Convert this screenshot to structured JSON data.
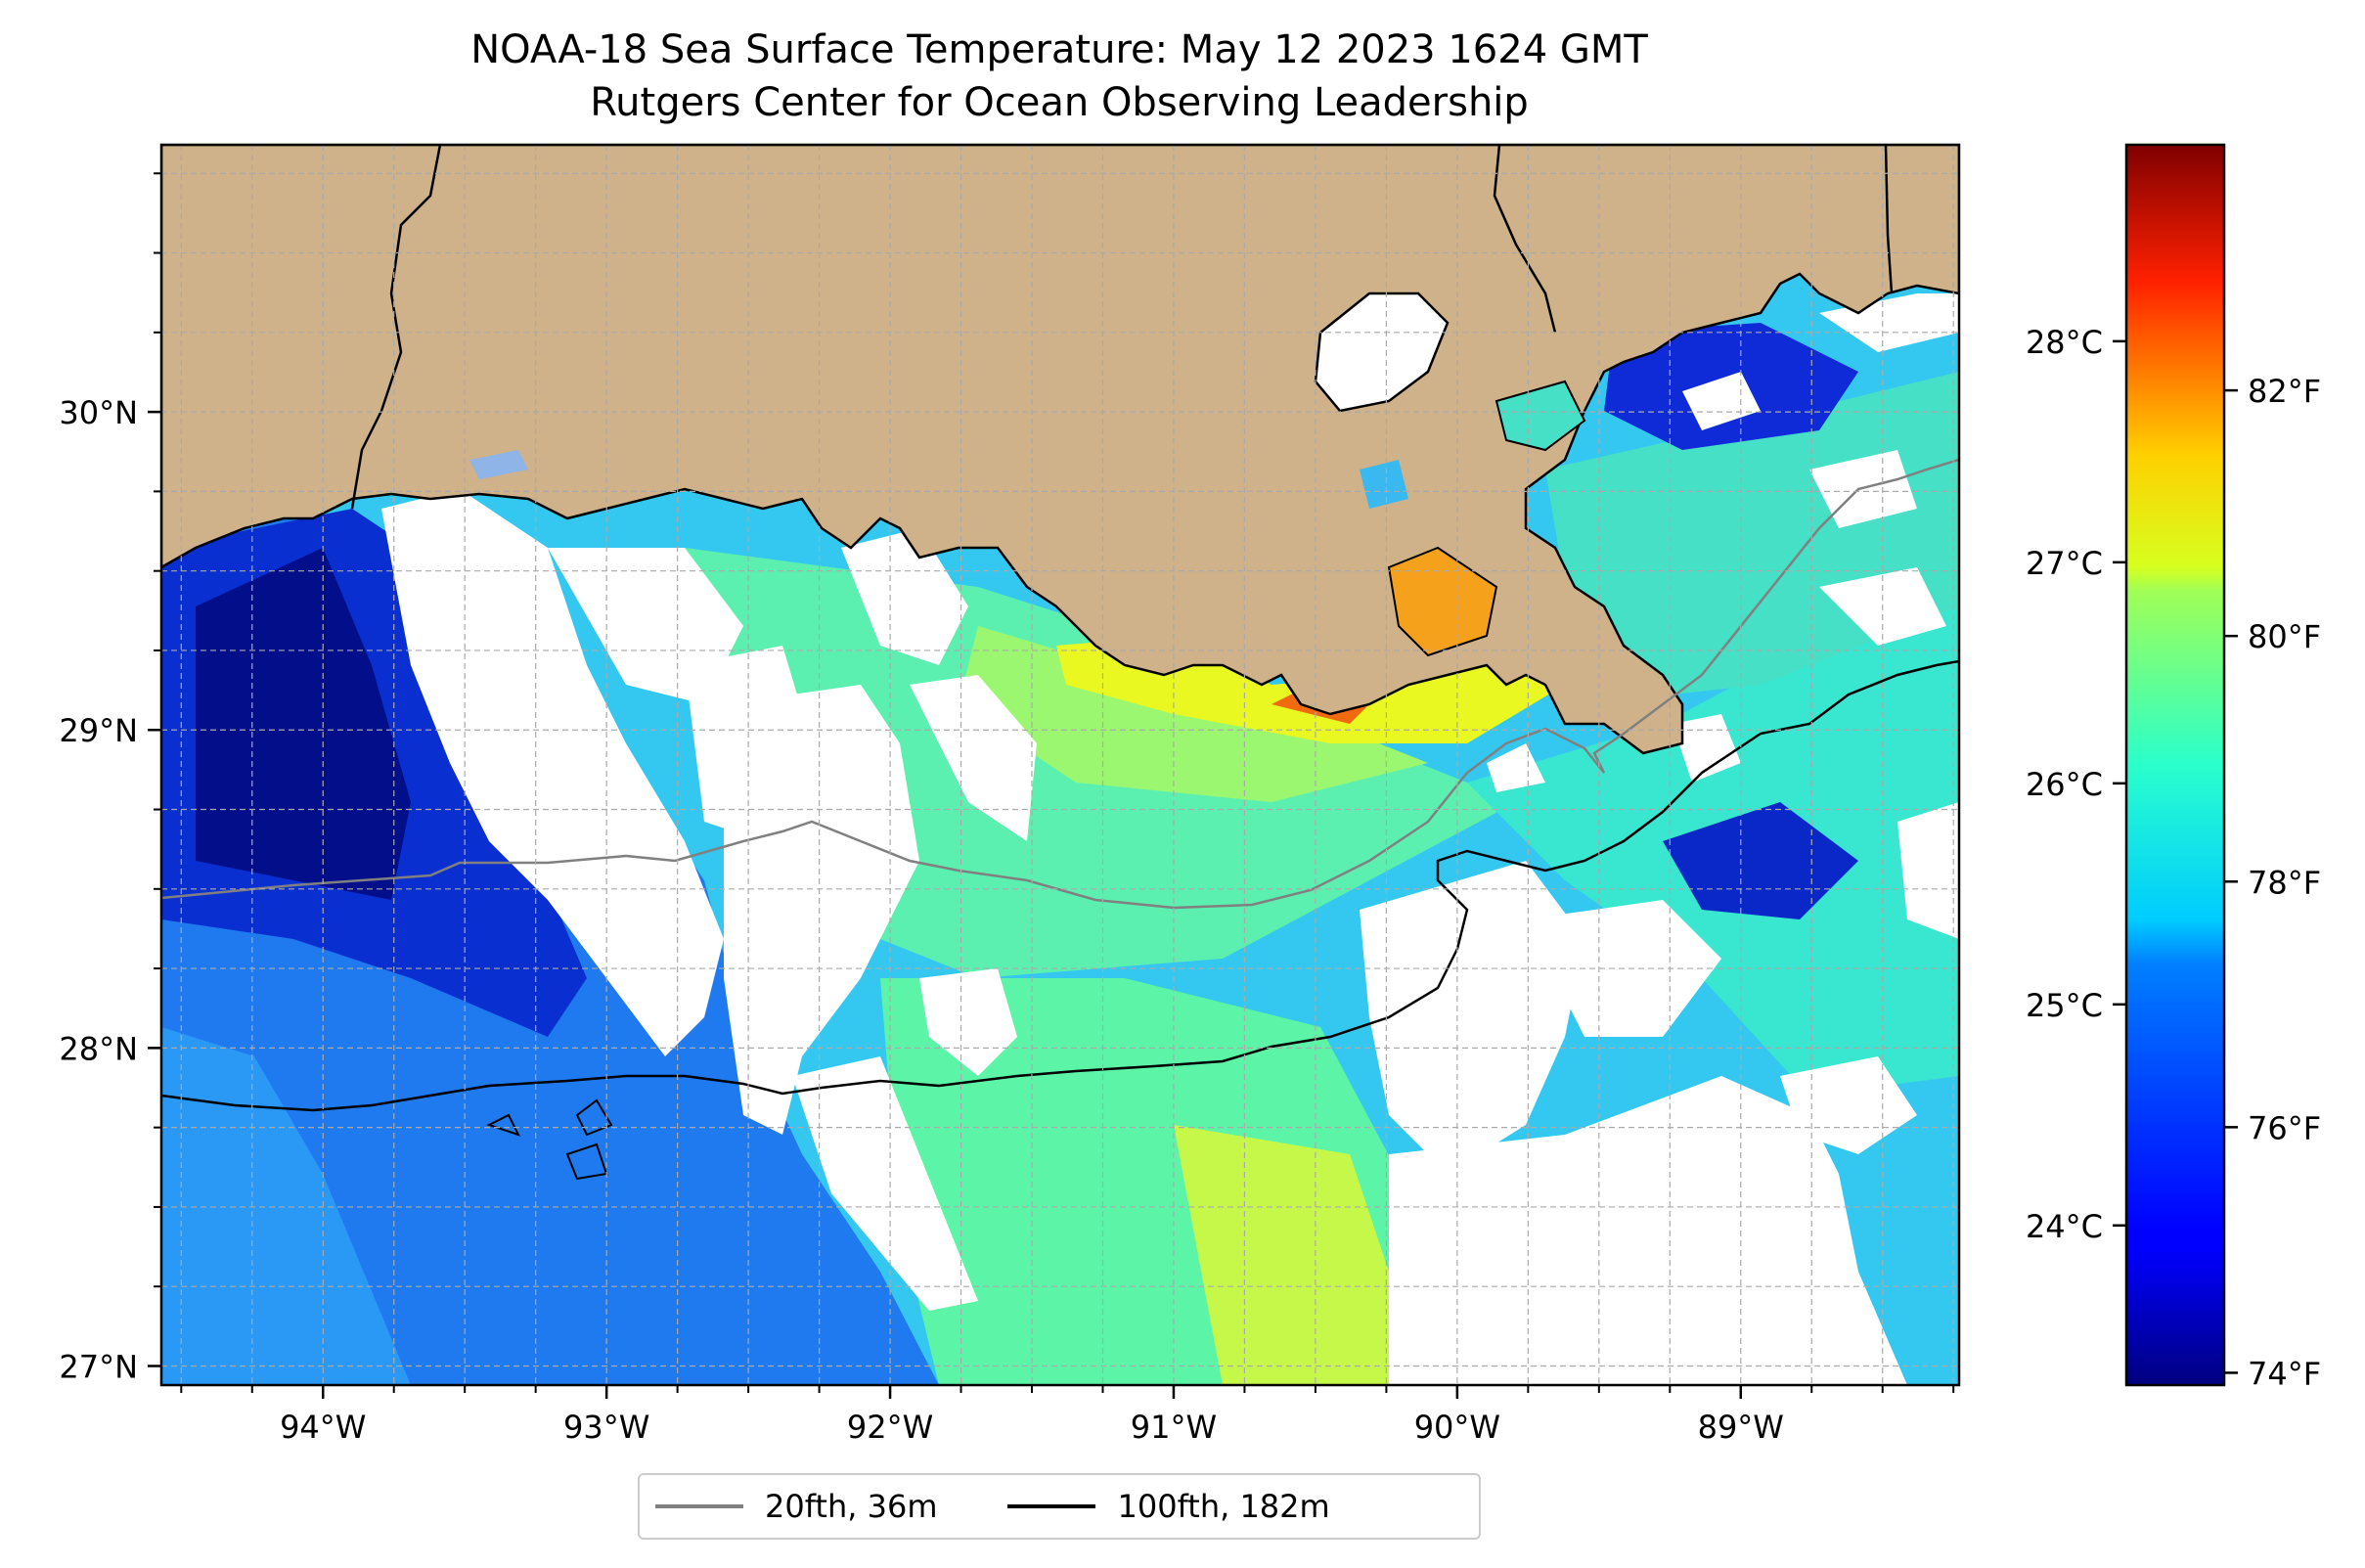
{
  "title": "NOAA-18 Sea Surface Temperature: May 12 2023 1624 GMT",
  "subtitle": "Rutgers Center for Ocean Observing Leadership",
  "map": {
    "lon_range": [
      -94.57,
      -88.23
    ],
    "lat_range": [
      26.94,
      30.84
    ],
    "lon_ticks": [
      -94,
      -93,
      -92,
      -91,
      -90,
      -89
    ],
    "lon_labels": [
      "94°W",
      "93°W",
      "92°W",
      "91°W",
      "90°W",
      "89°W"
    ],
    "lat_ticks": [
      27,
      28,
      29,
      30
    ],
    "lat_labels": [
      "27°N",
      "28°N",
      "29°N",
      "30°N"
    ],
    "grid": true,
    "colors": {
      "land": "#cfb28a",
      "cloud": "#ffffff",
      "gridline": "#aaaaaa"
    }
  },
  "colorbar": {
    "colormap": "jet",
    "vmin_f": 73.9,
    "vmax_f": 84.0,
    "f_ticks": [
      74,
      76,
      78,
      80,
      82
    ],
    "f_labels": [
      "74°F",
      "76°F",
      "78°F",
      "80°F",
      "82°F"
    ],
    "c_ticks": [
      24,
      25,
      26,
      27,
      28
    ],
    "c_labels": [
      "24°C",
      "25°C",
      "26°C",
      "27°C",
      "28°C"
    ]
  },
  "legend": {
    "items": [
      {
        "label": "20fth, 36m",
        "color": "#808080"
      },
      {
        "label": "100fth, 182m",
        "color": "#000000"
      }
    ]
  }
}
